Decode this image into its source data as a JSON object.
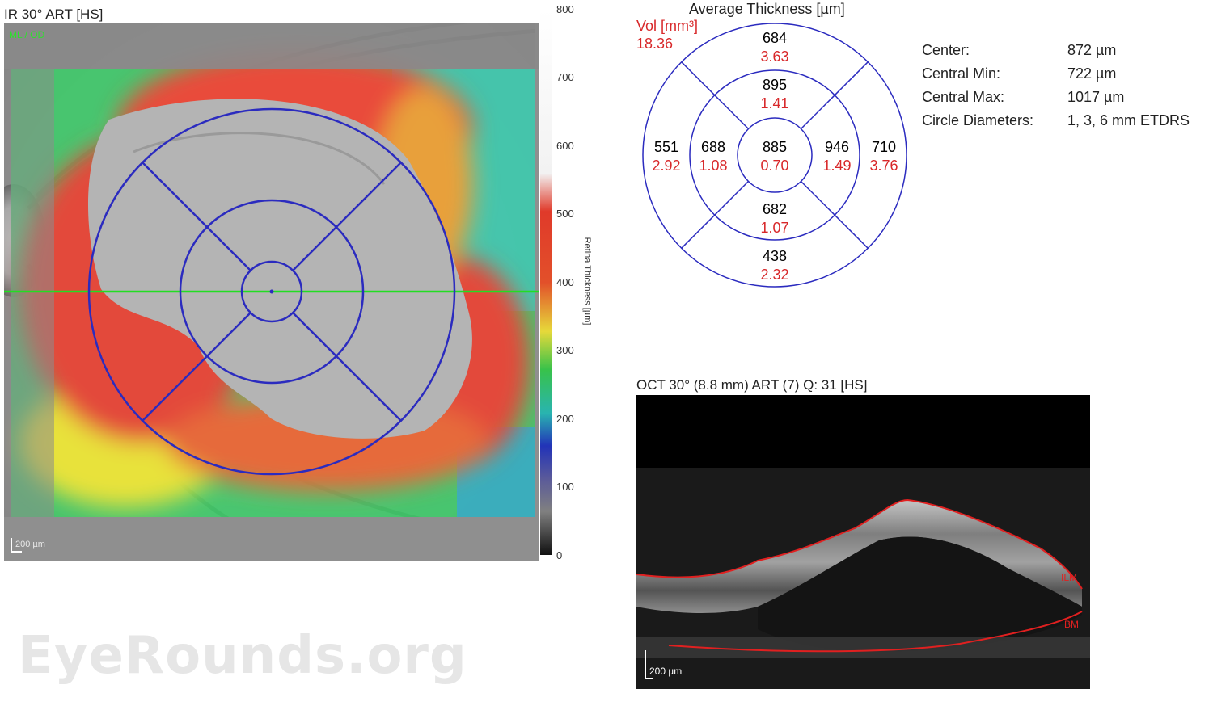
{
  "fundus": {
    "title": "IR 30° ART [HS]",
    "corner_tag": "ML / OD",
    "scale_bar": "200 µm"
  },
  "color_scale": {
    "axis_label": "Retina Thickness [µm]",
    "ticks": [
      "800",
      "700",
      "600",
      "500",
      "400",
      "300",
      "200",
      "100",
      "0"
    ]
  },
  "etdrs": {
    "title": "Average Thickness [µm]",
    "vol_label": "Vol [mm³]",
    "vol_total": "18.36",
    "sectors": {
      "outer_superior": {
        "thickness": "684",
        "volume": "3.63"
      },
      "inner_superior": {
        "thickness": "895",
        "volume": "1.41"
      },
      "outer_temporal": {
        "thickness": "551",
        "volume": "2.92"
      },
      "inner_temporal": {
        "thickness": "688",
        "volume": "1.08"
      },
      "center": {
        "thickness": "885",
        "volume": "0.70"
      },
      "inner_nasal": {
        "thickness": "946",
        "volume": "1.49"
      },
      "outer_nasal": {
        "thickness": "710",
        "volume": "3.76"
      },
      "inner_inferior": {
        "thickness": "682",
        "volume": "1.07"
      },
      "outer_inferior": {
        "thickness": "438",
        "volume": "2.32"
      }
    }
  },
  "stats": [
    {
      "label": "Center:",
      "value": "872 µm"
    },
    {
      "label": "Central Min:",
      "value": "722 µm"
    },
    {
      "label": "Central Max:",
      "value": "1017 µm"
    },
    {
      "label": "Circle Diameters:",
      "value": "1, 3, 6 mm ETDRS"
    }
  ],
  "oct": {
    "title": "OCT 30° (8.8 mm) ART (7) Q: 31 [HS]",
    "ilm_label": "ILM",
    "bm_label": "BM",
    "scale_bar": "200 µm"
  },
  "watermark": "EyeRounds.org",
  "colors": {
    "grid_line": "#2b2bbf",
    "scan_line": "#22dd22",
    "volume_text": "#d8282a",
    "segmentation": "#e02020"
  }
}
